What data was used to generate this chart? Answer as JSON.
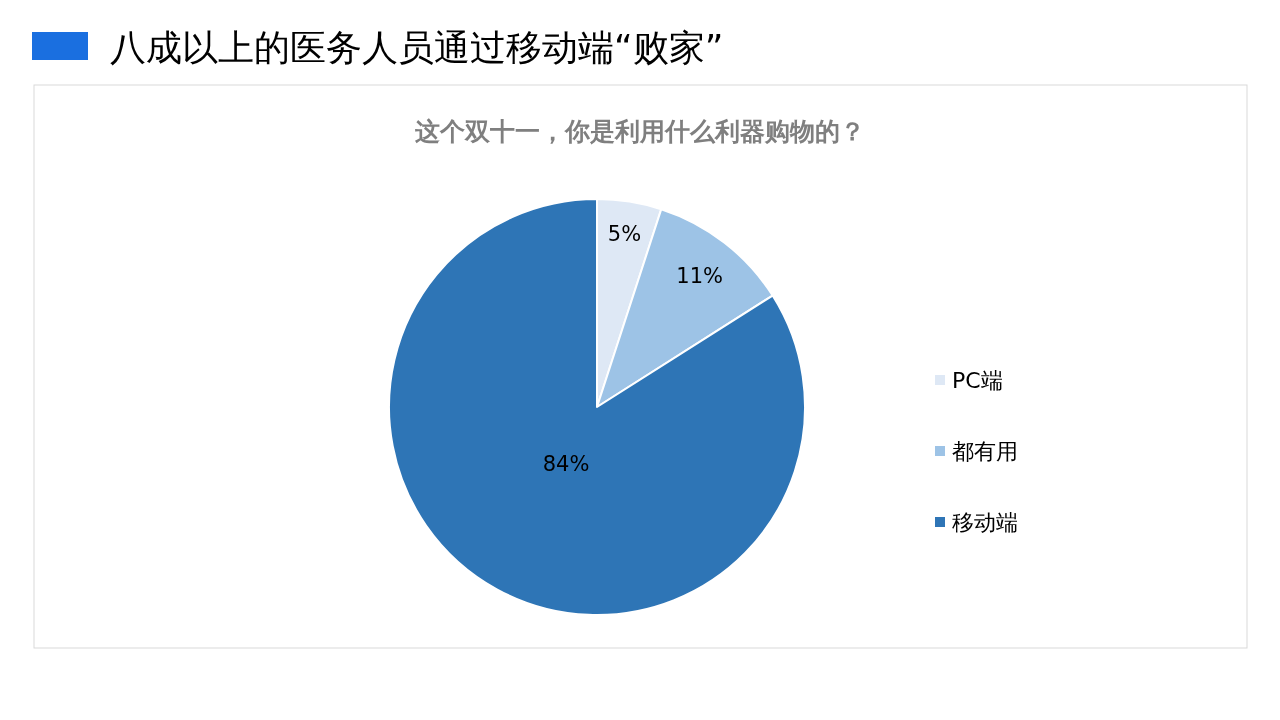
{
  "chart_data": {
    "type": "pie",
    "title": "八成以上的医务人员通过移动端“败家”",
    "subtitle": "这个双十一，你是利用什么利器购物的？",
    "categories": [
      "PC端",
      "都有用",
      "移动端"
    ],
    "values": [
      5,
      11,
      84
    ],
    "colors": [
      "#dee8f5",
      "#9dc3e6",
      "#2e75b6"
    ],
    "value_labels": [
      "5%",
      "11%",
      "84%"
    ],
    "legend": "right"
  }
}
